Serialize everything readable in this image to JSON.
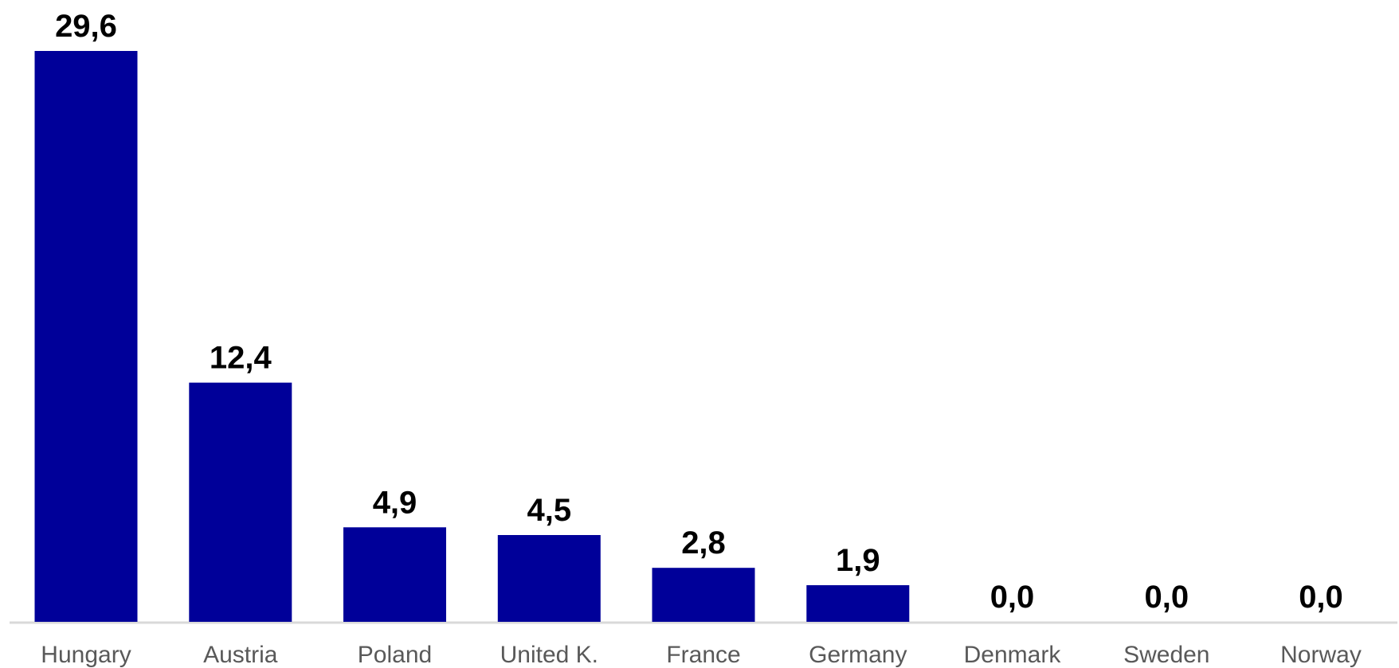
{
  "chart_data": {
    "type": "bar",
    "title": "",
    "xlabel": "",
    "ylabel": "",
    "categories": [
      "Hungary",
      "Austria",
      "Poland",
      "United K.",
      "France",
      "Germany",
      "Denmark",
      "Sweden",
      "Norway"
    ],
    "values": [
      29.6,
      12.4,
      4.9,
      4.5,
      2.8,
      1.9,
      0.0,
      0.0,
      0.0
    ],
    "value_labels": [
      "29,6",
      "12,4",
      "4,9",
      "4,5",
      "2,8",
      "1,9",
      "0,0",
      "0,0",
      "0,0"
    ],
    "ylim": [
      0,
      29.6
    ],
    "grid": false,
    "legend": "none",
    "colors": {
      "bar": "#000099",
      "axis": "#d9d9d9",
      "value_text": "#000000",
      "category_text": "#595959"
    }
  }
}
